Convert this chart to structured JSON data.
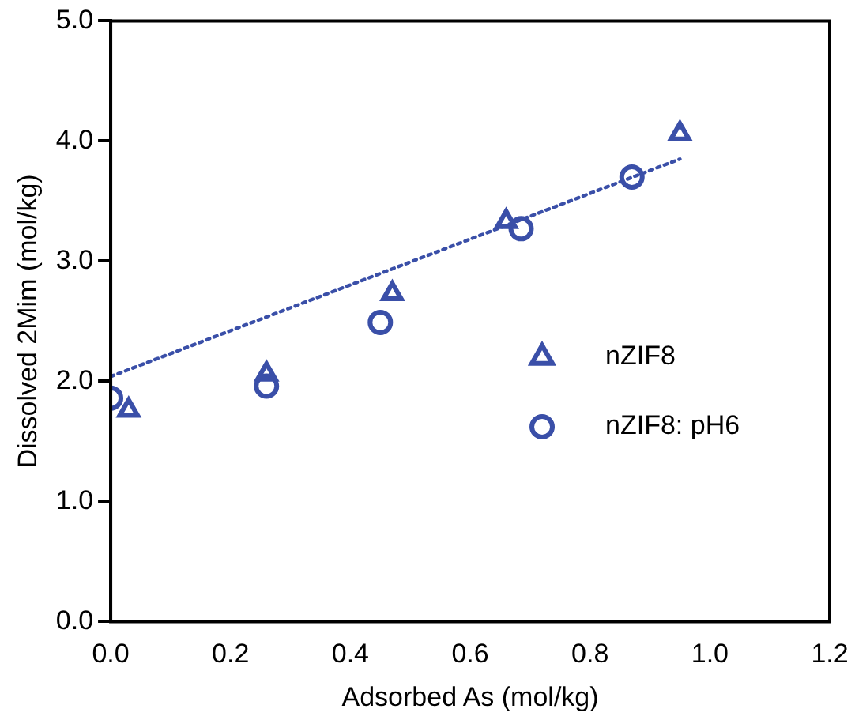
{
  "chart_data": {
    "type": "scatter",
    "xlabel": "Adsorbed As (mol/kg)",
    "ylabel": "Dissolved 2Mim (mol/kg)",
    "xlim": [
      0,
      1.2
    ],
    "xticks": [
      {
        "value": 0,
        "label": "0.0"
      },
      {
        "value": 0.2,
        "label": "0.2"
      },
      {
        "value": 0.4,
        "label": "0.4"
      },
      {
        "value": 0.6,
        "label": "0.6"
      },
      {
        "value": 0.8,
        "label": "0.8"
      },
      {
        "value": 1,
        "label": "1.0"
      },
      {
        "value": 1.2,
        "label": "1.2"
      }
    ],
    "ylim": [
      0,
      5
    ],
    "yticks": [
      {
        "value": 0,
        "label": "0.0"
      },
      {
        "value": 1,
        "label": "1.0"
      },
      {
        "value": 2,
        "label": "2.0"
      },
      {
        "value": 3,
        "label": "3.0"
      },
      {
        "value": 4,
        "label": "4.0"
      },
      {
        "value": 5,
        "label": "5.0"
      }
    ],
    "grid": false,
    "legend": "right",
    "series": [
      {
        "name": "nZIF8",
        "color": "#3a4fa8",
        "marker": "triangle",
        "x": [
          0.03,
          0.26,
          0.47,
          0.66,
          0.95
        ],
        "values": [
          1.76,
          2.06,
          2.73,
          3.33,
          4.06
        ]
      },
      {
        "name": "nZIF8: pH6",
        "color": "#3a4fa8",
        "marker": "circle",
        "x": [
          0,
          0.26,
          0.45,
          0.685,
          0.87
        ],
        "values": [
          1.86,
          1.96,
          2.49,
          3.27,
          3.7
        ]
      },
      {
        "type": "line",
        "color": "#3a4fa8",
        "line_style": "dotted",
        "marker": "none",
        "x": [
          0,
          0.95
        ],
        "values": [
          2.04,
          3.85
        ]
      }
    ]
  }
}
